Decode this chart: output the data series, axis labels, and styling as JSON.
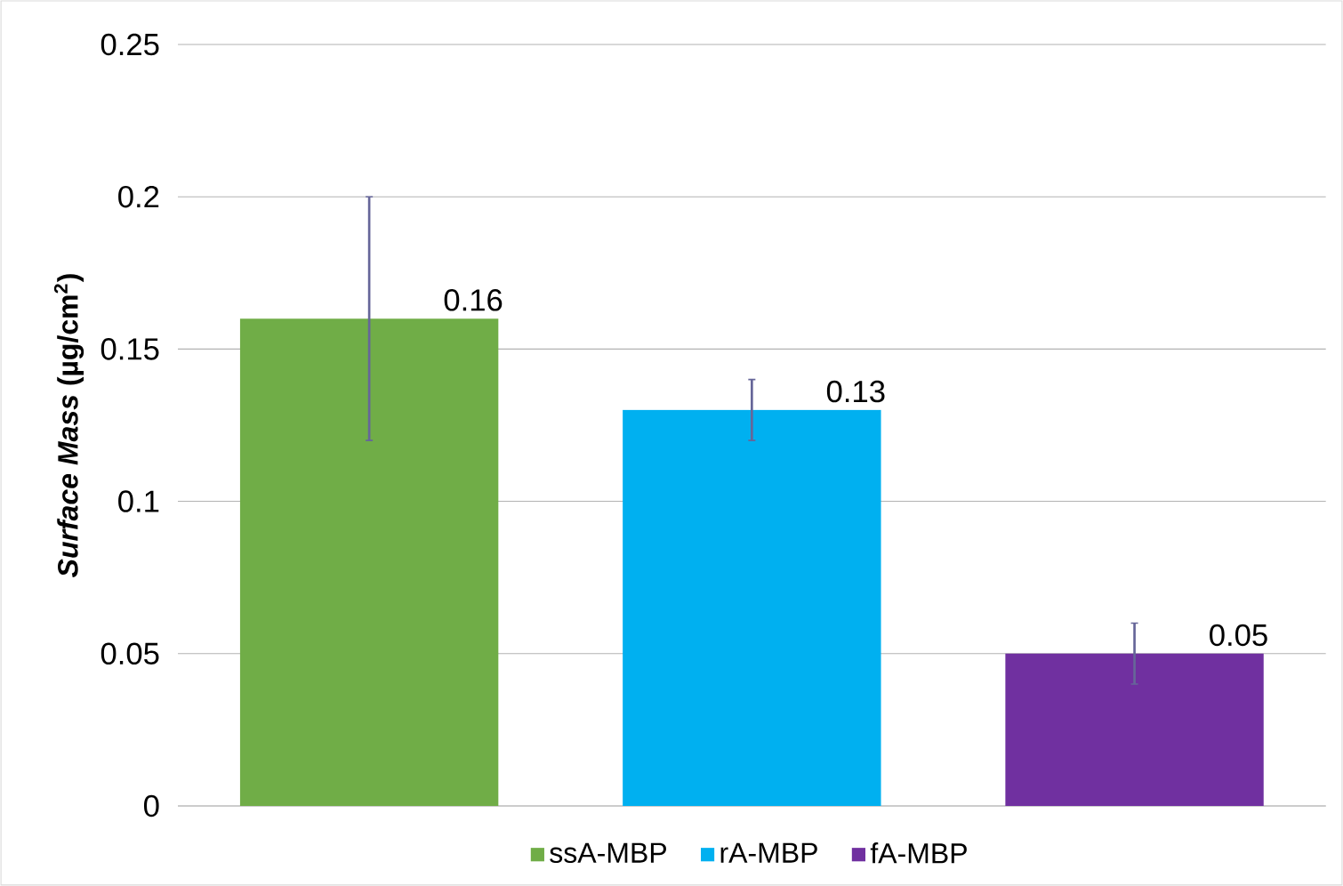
{
  "chart_data": {
    "type": "bar",
    "ylabel": "*Surface Mass* (µg/cm$^{2}$)",
    "categories": [
      null,
      null,
      null
    ],
    "series": [
      {
        "name": "ssA-MBP",
        "color": "#70ad47",
        "values": [
          0.16,
          null,
          null
        ],
        "errors": [
          0.04,
          null,
          null
        ]
      },
      {
        "name": "rA-MBP",
        "color": "#00b0f0",
        "values": [
          null,
          0.13,
          null
        ],
        "errors": [
          null,
          0.01,
          null
        ]
      },
      {
        "name": "fA-MBP",
        "color": "#7030a0",
        "values": [
          null,
          null,
          0.05
        ],
        "errors": [
          null,
          null,
          0.01
        ]
      }
    ],
    "ylim": [
      0,
      0.25
    ],
    "yticks": [
      0,
      0.05,
      0.1,
      0.15,
      0.2,
      0.25
    ],
    "grid": "y",
    "legend": "bottom",
    "data_labels": true
  }
}
